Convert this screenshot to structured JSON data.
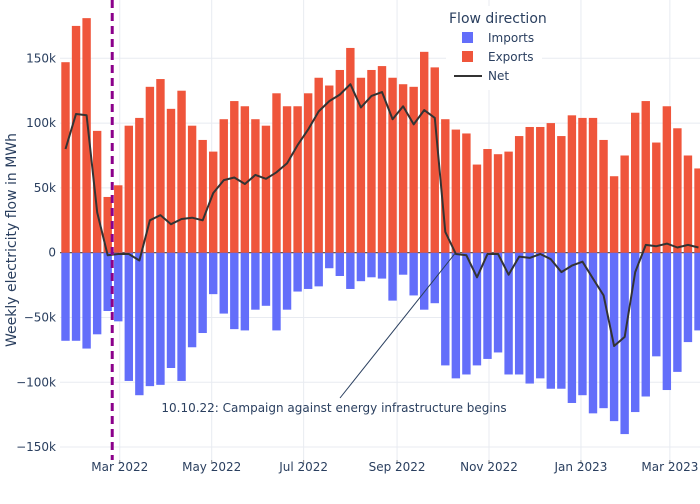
{
  "chart_data": {
    "type": "bar",
    "title": "",
    "ylabel": "Weekly electricity flow in MWh",
    "xlabel": "",
    "ylim": [
      -160000,
      195000
    ],
    "y_ticks": [
      -150000,
      -100000,
      -50000,
      0,
      50000,
      100000,
      150000
    ],
    "y_tick_labels": [
      "−150k",
      "−100k",
      "−50k",
      "0",
      "50k",
      "100k",
      "150k"
    ],
    "x_start": "2022-01-24",
    "week_days": 7,
    "x_ticks": [
      {
        "date": "2022-03-01",
        "label": "Mar 2022"
      },
      {
        "date": "2022-05-01",
        "label": "May 2022"
      },
      {
        "date": "2022-07-01",
        "label": "Jul 2022"
      },
      {
        "date": "2022-09-01",
        "label": "Sep 2022"
      },
      {
        "date": "2022-11-01",
        "label": "Nov 2022"
      },
      {
        "date": "2023-01-01",
        "label": "Jan 2023"
      },
      {
        "date": "2023-03-01",
        "label": "Mar 2023"
      }
    ],
    "barmode": "relative",
    "grid": true,
    "legend": {
      "title": "Flow direction",
      "placement": "top-center"
    },
    "series": [
      {
        "name": "Imports",
        "type": "bar",
        "color": "#636efa",
        "values": [
          -68000,
          -68000,
          -74000,
          -63000,
          -45000,
          -53000,
          -99000,
          -110000,
          -103000,
          -102000,
          -89000,
          -99000,
          -73000,
          -62000,
          -32000,
          -47000,
          -59000,
          -60000,
          -44000,
          -41000,
          -60000,
          -44000,
          -30000,
          -28000,
          -26000,
          -12000,
          -18000,
          -28000,
          -22000,
          -19000,
          -20000,
          -37000,
          -17000,
          -33000,
          -44000,
          -39000,
          -87000,
          -97000,
          -94000,
          -87000,
          -82000,
          -77000,
          -94000,
          -94000,
          -101000,
          -97000,
          -105000,
          -105000,
          -116000,
          -110000,
          -124000,
          -120000,
          -130000,
          -140000,
          -123000,
          -111000,
          -80000,
          -106000,
          -92000,
          -69000,
          -60000
        ]
      },
      {
        "name": "Exports",
        "type": "bar",
        "color": "#ef553b",
        "values": [
          147000,
          175000,
          181000,
          94000,
          43000,
          52000,
          98000,
          104000,
          128000,
          134000,
          111000,
          125000,
          98000,
          87000,
          78000,
          103000,
          117000,
          113000,
          103000,
          98000,
          123000,
          113000,
          113000,
          123000,
          135000,
          129000,
          141000,
          158000,
          135000,
          141000,
          144000,
          135000,
          130000,
          128000,
          155000,
          143000,
          103000,
          95000,
          92000,
          68000,
          80000,
          76000,
          78000,
          90000,
          97000,
          97000,
          100000,
          90000,
          106000,
          104000,
          104000,
          87000,
          59000,
          75000,
          108000,
          117000,
          85000,
          113000,
          96000,
          75000,
          65000
        ]
      },
      {
        "name": "Net",
        "type": "line",
        "color": "#333333",
        "values": [
          80000,
          107000,
          106000,
          31000,
          -2000,
          -1000,
          -1000,
          -6000,
          25000,
          29000,
          22000,
          26000,
          27000,
          25000,
          46000,
          56000,
          58000,
          53000,
          60000,
          57000,
          62000,
          69000,
          83000,
          95000,
          109000,
          117000,
          122000,
          130000,
          112000,
          121000,
          124000,
          103000,
          113000,
          99000,
          110000,
          104000,
          16000,
          -1000,
          -2000,
          -19000,
          -1000,
          -1000,
          -17000,
          -3000,
          -4000,
          -1000,
          -5000,
          -15000,
          -10000,
          -7000,
          -20000,
          -33000,
          -72000,
          -65000,
          -15000,
          6000,
          5000,
          7000,
          4000,
          6000,
          4000
        ]
      }
    ],
    "annotations": [
      {
        "type": "vline",
        "date": "2022-02-24",
        "color": "#8b008b",
        "dash": "dashed"
      },
      {
        "type": "label",
        "text": "10.10.22: Campaign against energy infrastructure begins",
        "point": {
          "date": "2022-10-10",
          "value": 0
        }
      }
    ]
  }
}
